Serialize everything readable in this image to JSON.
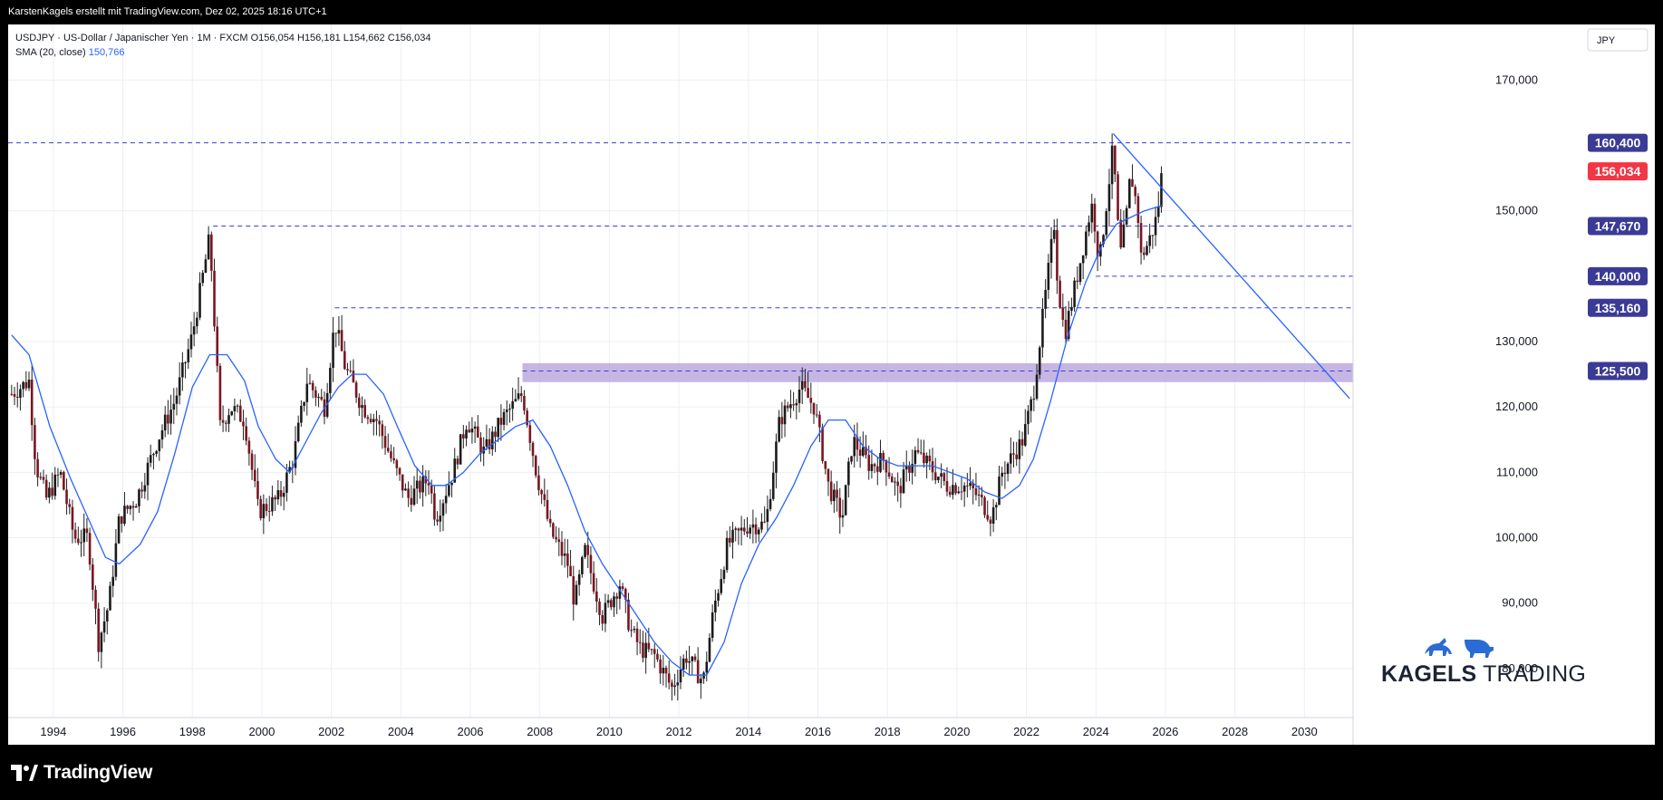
{
  "header": {
    "credit": "KarstenKagels erstellt mit TradingView.com, Dez 02, 2025 18:16 UTC+1"
  },
  "legend": {
    "symbol_line": "USDJPY · US-Dollar / Japanischer Yen · 1M · FXCM",
    "open": "O156,054",
    "high": "H156,181",
    "low": "L154,662",
    "close": "C156,034",
    "sma_label": "SMA (20, close)",
    "sma_value": "150,766"
  },
  "footer": {
    "brand": "TradingView"
  },
  "watermark": {
    "text_bold": "KAGELS",
    "text_light": " TRADING"
  },
  "colors": {
    "up": "#26a69a",
    "down": "#ef5350",
    "candle_dark": "#1b1b1b",
    "candle_red": "#7a1620",
    "sma": "#2962ff",
    "level_line": "#3f3fd0",
    "level_label_bg": "#3b3b96",
    "last_price_bg": "#f23645",
    "zone": "#b39ddb"
  },
  "chart_data": {
    "type": "line",
    "title": "USDJPY · US-Dollar / Japanischer Yen · 1M · FXCM",
    "xlabel": "",
    "ylabel": "",
    "currency_label": "JPY",
    "x_ticks": [
      "1994",
      "1996",
      "1998",
      "2000",
      "2002",
      "2004",
      "2006",
      "2008",
      "2010",
      "2012",
      "2014",
      "2016",
      "2018",
      "2020",
      "2022",
      "2024",
      "2026",
      "2028",
      "2030"
    ],
    "y_ticks": [
      "170,000",
      "150,000",
      "130,000",
      "120,000",
      "110,000",
      "100,000",
      "90,000",
      "80,000"
    ],
    "xlim": [
      1992.7,
      2031.4
    ],
    "ylim": [
      72.5,
      178.5
    ],
    "series": [
      {
        "name": "USDJPY",
        "kind": "price_approx",
        "points": [
          [
            1992.8,
            122
          ],
          [
            1993.3,
            124
          ],
          [
            1993.5,
            111
          ],
          [
            1993.8,
            106
          ],
          [
            1994.2,
            110
          ],
          [
            1994.6,
            100
          ],
          [
            1995.0,
            100
          ],
          [
            1995.3,
            84
          ],
          [
            1995.6,
            90
          ],
          [
            1995.9,
            103
          ],
          [
            1996.4,
            106
          ],
          [
            1997.0,
            115
          ],
          [
            1997.5,
            121
          ],
          [
            1998.0,
            131
          ],
          [
            1998.5,
            146
          ],
          [
            1998.8,
            117
          ],
          [
            1999.1,
            120
          ],
          [
            1999.5,
            118
          ],
          [
            1999.9,
            104
          ],
          [
            2000.5,
            106
          ],
          [
            2000.9,
            112
          ],
          [
            2001.3,
            124
          ],
          [
            2001.8,
            120
          ],
          [
            2002.1,
            133
          ],
          [
            2002.4,
            126
          ],
          [
            2002.9,
            120
          ],
          [
            2003.3,
            118
          ],
          [
            2003.8,
            111
          ],
          [
            2004.2,
            106
          ],
          [
            2004.8,
            109
          ],
          [
            2005.0,
            103
          ],
          [
            2005.5,
            110
          ],
          [
            2005.9,
            118
          ],
          [
            2006.4,
            113
          ],
          [
            2006.9,
            118
          ],
          [
            2007.5,
            122
          ],
          [
            2007.9,
            110
          ],
          [
            2008.3,
            101
          ],
          [
            2008.8,
            96
          ],
          [
            2009.0,
            90
          ],
          [
            2009.3,
            98
          ],
          [
            2009.8,
            88
          ],
          [
            2010.3,
            93
          ],
          [
            2010.6,
            86
          ],
          [
            2010.9,
            83
          ],
          [
            2011.3,
            82
          ],
          [
            2011.8,
            77
          ],
          [
            2012.2,
            82
          ],
          [
            2012.7,
            78
          ],
          [
            2013.0,
            89
          ],
          [
            2013.4,
            99
          ],
          [
            2014.0,
            102
          ],
          [
            2014.5,
            102
          ],
          [
            2014.9,
            118
          ],
          [
            2015.5,
            123
          ],
          [
            2015.9,
            120
          ],
          [
            2016.3,
            108
          ],
          [
            2016.7,
            103
          ],
          [
            2017.0,
            115
          ],
          [
            2017.5,
            111
          ],
          [
            2017.9,
            112
          ],
          [
            2018.3,
            107
          ],
          [
            2018.8,
            113
          ],
          [
            2019.2,
            111
          ],
          [
            2019.7,
            108
          ],
          [
            2020.2,
            108
          ],
          [
            2020.5,
            107
          ],
          [
            2020.9,
            104
          ],
          [
            2021.0,
            103
          ],
          [
            2021.3,
            110
          ],
          [
            2021.9,
            115
          ],
          [
            2022.2,
            122
          ],
          [
            2022.5,
            135
          ],
          [
            2022.8,
            148
          ],
          [
            2022.9,
            139
          ],
          [
            2023.1,
            131
          ],
          [
            2023.3,
            136
          ],
          [
            2023.5,
            141
          ],
          [
            2023.8,
            149
          ],
          [
            2023.9,
            151
          ],
          [
            2024.1,
            142
          ],
          [
            2024.3,
            151
          ],
          [
            2024.5,
            160
          ],
          [
            2024.6,
            150
          ],
          [
            2024.7,
            143
          ],
          [
            2024.9,
            150
          ],
          [
            2025.0,
            156
          ],
          [
            2025.2,
            150
          ],
          [
            2025.3,
            143
          ],
          [
            2025.5,
            145
          ],
          [
            2025.7,
            148
          ],
          [
            2025.8,
            151
          ],
          [
            2025.9,
            156
          ]
        ]
      },
      {
        "name": "SMA (20, close)",
        "points": [
          [
            1992.8,
            131
          ],
          [
            1993.3,
            128
          ],
          [
            1993.9,
            117
          ],
          [
            1994.5,
            109
          ],
          [
            1995.0,
            103
          ],
          [
            1995.5,
            97
          ],
          [
            1995.9,
            96
          ],
          [
            1996.5,
            99
          ],
          [
            1997.0,
            104
          ],
          [
            1997.5,
            113
          ],
          [
            1998.0,
            123
          ],
          [
            1998.5,
            128
          ],
          [
            1999.0,
            128
          ],
          [
            1999.5,
            124
          ],
          [
            1999.9,
            117
          ],
          [
            2000.4,
            112
          ],
          [
            2000.8,
            110
          ],
          [
            2001.2,
            114
          ],
          [
            2001.7,
            119
          ],
          [
            2002.2,
            123
          ],
          [
            2002.6,
            125
          ],
          [
            2003.0,
            125
          ],
          [
            2003.5,
            122
          ],
          [
            2003.9,
            117
          ],
          [
            2004.4,
            111
          ],
          [
            2004.9,
            108
          ],
          [
            2005.3,
            108
          ],
          [
            2005.8,
            110
          ],
          [
            2006.3,
            113
          ],
          [
            2006.8,
            115
          ],
          [
            2007.3,
            117
          ],
          [
            2007.8,
            118
          ],
          [
            2008.3,
            114
          ],
          [
            2008.8,
            108
          ],
          [
            2009.3,
            101
          ],
          [
            2009.8,
            96
          ],
          [
            2010.3,
            92
          ],
          [
            2010.8,
            88
          ],
          [
            2011.3,
            84
          ],
          [
            2011.8,
            81
          ],
          [
            2012.3,
            79
          ],
          [
            2012.8,
            79
          ],
          [
            2013.3,
            84
          ],
          [
            2013.8,
            93
          ],
          [
            2014.3,
            99
          ],
          [
            2014.8,
            103
          ],
          [
            2015.3,
            108
          ],
          [
            2015.8,
            114
          ],
          [
            2016.3,
            118
          ],
          [
            2016.8,
            118
          ],
          [
            2017.3,
            114
          ],
          [
            2017.8,
            112
          ],
          [
            2018.3,
            111
          ],
          [
            2018.8,
            111
          ],
          [
            2019.3,
            111
          ],
          [
            2019.8,
            110
          ],
          [
            2020.3,
            109
          ],
          [
            2020.8,
            107
          ],
          [
            2021.3,
            106
          ],
          [
            2021.8,
            108
          ],
          [
            2022.2,
            112
          ],
          [
            2022.7,
            121
          ],
          [
            2023.2,
            131
          ],
          [
            2023.7,
            139
          ],
          [
            2024.2,
            145
          ],
          [
            2024.6,
            148
          ],
          [
            2025.0,
            149
          ],
          [
            2025.4,
            150
          ],
          [
            2025.9,
            150.8
          ]
        ]
      }
    ],
    "horizontal_levels": [
      {
        "value": 160.4,
        "label": "160,400",
        "from_x": 1992.7
      },
      {
        "value": 147.67,
        "label": "147,670",
        "from_x": 1998.6
      },
      {
        "value": 140.0,
        "label": "140,000",
        "from_x": 2024.0
      },
      {
        "value": 135.16,
        "label": "135,160",
        "from_x": 2002.1
      },
      {
        "value": 125.5,
        "label": "125,500",
        "from_x": 2007.5
      }
    ],
    "zone": {
      "from_x": 2007.5,
      "y_low": 123.8,
      "y_high": 126.7
    },
    "trendline": {
      "x1": 2024.5,
      "y1": 161.8,
      "x2": 2031.3,
      "y2": 121.3
    },
    "last_price": {
      "value": 156.034,
      "label": "156,034"
    },
    "grid": true,
    "legend_position": "top-left"
  }
}
